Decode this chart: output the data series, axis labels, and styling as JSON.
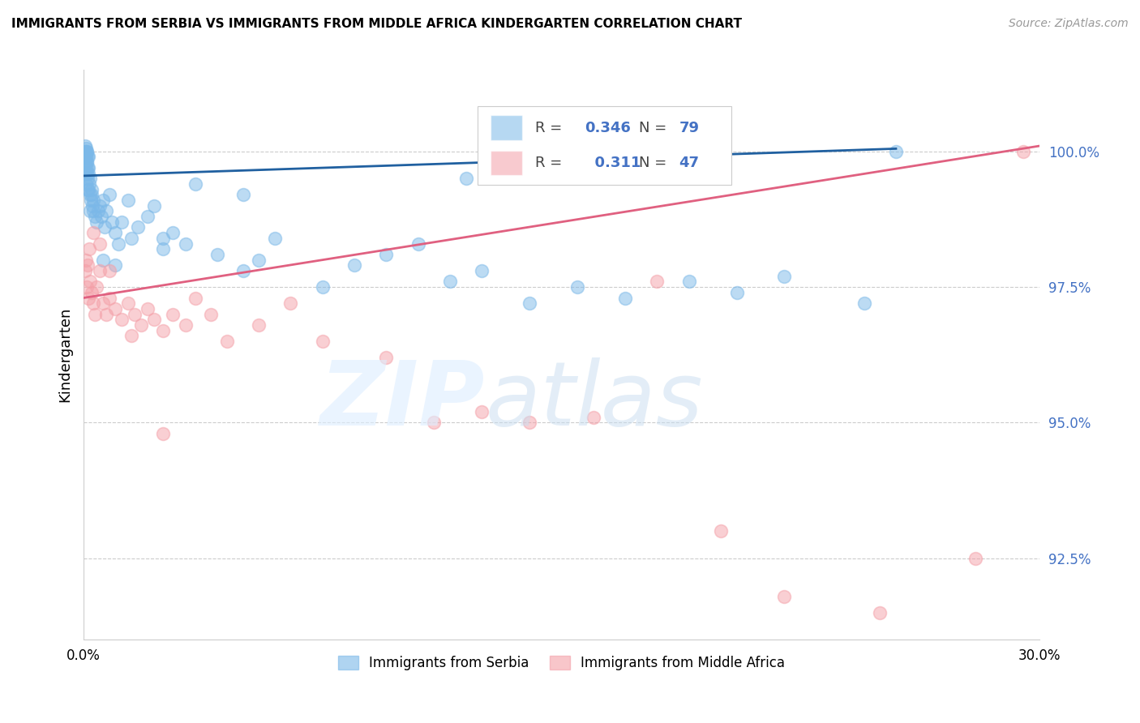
{
  "title": "IMMIGRANTS FROM SERBIA VS IMMIGRANTS FROM MIDDLE AFRICA KINDERGARTEN CORRELATION CHART",
  "source": "Source: ZipAtlas.com",
  "ylabel": "Kindergarten",
  "xlim": [
    0.0,
    30.0
  ],
  "ylim": [
    91.0,
    101.5
  ],
  "yticks": [
    92.5,
    95.0,
    97.5,
    100.0
  ],
  "ytick_labels": [
    "92.5%",
    "95.0%",
    "97.5%",
    "100.0%"
  ],
  "serbia_R": 0.346,
  "serbia_N": 79,
  "africa_R": 0.311,
  "africa_N": 47,
  "serbia_color": "#7bb8e8",
  "africa_color": "#f4a0a8",
  "serbia_line_color": "#2060a0",
  "africa_line_color": "#e06080",
  "legend_serbia": "Immigrants from Serbia",
  "legend_africa": "Immigrants from Middle Africa",
  "serbia_line_x0": 0.0,
  "serbia_line_y0": 99.55,
  "serbia_line_x1": 25.5,
  "serbia_line_y1": 100.05,
  "africa_line_x0": 0.0,
  "africa_line_y0": 97.3,
  "africa_line_x1": 30.0,
  "africa_line_y1": 100.1,
  "serbia_points_x": [
    0.05,
    0.05,
    0.05,
    0.06,
    0.06,
    0.07,
    0.07,
    0.08,
    0.08,
    0.09,
    0.1,
    0.1,
    0.1,
    0.12,
    0.12,
    0.13,
    0.15,
    0.15,
    0.15,
    0.18,
    0.2,
    0.2,
    0.22,
    0.25,
    0.28,
    0.3,
    0.35,
    0.4,
    0.45,
    0.5,
    0.55,
    0.6,
    0.65,
    0.7,
    0.8,
    0.9,
    1.0,
    1.1,
    1.2,
    1.4,
    1.5,
    1.7,
    2.0,
    2.2,
    2.5,
    2.8,
    3.2,
    3.5,
    4.2,
    5.0,
    5.5,
    6.0,
    7.5,
    8.5,
    9.5,
    10.5,
    11.5,
    12.5,
    14.0,
    15.5,
    17.0,
    19.0,
    20.5,
    22.0,
    24.5,
    25.5,
    0.06,
    0.08,
    0.1,
    0.13,
    0.15,
    0.2,
    0.25,
    0.3,
    0.6,
    1.0,
    2.5,
    5.0,
    12.0
  ],
  "serbia_points_y": [
    99.9,
    100.0,
    100.1,
    99.8,
    100.0,
    99.95,
    100.05,
    99.7,
    99.9,
    100.0,
    99.6,
    99.8,
    100.0,
    99.7,
    99.9,
    99.5,
    99.3,
    99.6,
    99.9,
    99.4,
    99.2,
    99.5,
    99.1,
    99.3,
    99.0,
    98.9,
    98.8,
    98.7,
    98.9,
    99.0,
    98.8,
    99.1,
    98.6,
    98.9,
    99.2,
    98.7,
    98.5,
    98.3,
    98.7,
    99.1,
    98.4,
    98.6,
    98.8,
    99.0,
    98.2,
    98.5,
    98.3,
    99.4,
    98.1,
    97.8,
    98.0,
    98.4,
    97.5,
    97.9,
    98.1,
    98.3,
    97.6,
    97.8,
    97.2,
    97.5,
    97.3,
    97.6,
    97.4,
    97.7,
    97.2,
    100.0,
    99.6,
    99.4,
    99.8,
    99.3,
    99.7,
    98.9,
    99.2,
    99.1,
    98.0,
    97.9,
    98.4,
    99.2,
    99.5
  ],
  "africa_points_x": [
    0.05,
    0.1,
    0.15,
    0.2,
    0.25,
    0.3,
    0.35,
    0.4,
    0.5,
    0.6,
    0.7,
    0.8,
    1.0,
    1.2,
    1.4,
    1.6,
    1.8,
    2.0,
    2.2,
    2.5,
    2.8,
    3.2,
    3.5,
    4.0,
    4.5,
    5.5,
    6.5,
    7.5,
    9.5,
    11.0,
    12.5,
    14.0,
    16.0,
    18.0,
    20.0,
    22.0,
    25.0,
    28.0,
    29.5,
    0.08,
    0.12,
    0.18,
    0.3,
    0.5,
    0.8,
    1.5,
    2.5
  ],
  "africa_points_y": [
    97.8,
    97.5,
    97.3,
    97.6,
    97.4,
    97.2,
    97.0,
    97.5,
    97.8,
    97.2,
    97.0,
    97.3,
    97.1,
    96.9,
    97.2,
    97.0,
    96.8,
    97.1,
    96.9,
    96.7,
    97.0,
    96.8,
    97.3,
    97.0,
    96.5,
    96.8,
    97.2,
    96.5,
    96.2,
    95.0,
    95.2,
    95.0,
    95.1,
    97.6,
    93.0,
    91.8,
    91.5,
    92.5,
    100.0,
    98.0,
    97.9,
    98.2,
    98.5,
    98.3,
    97.8,
    96.6,
    94.8
  ]
}
